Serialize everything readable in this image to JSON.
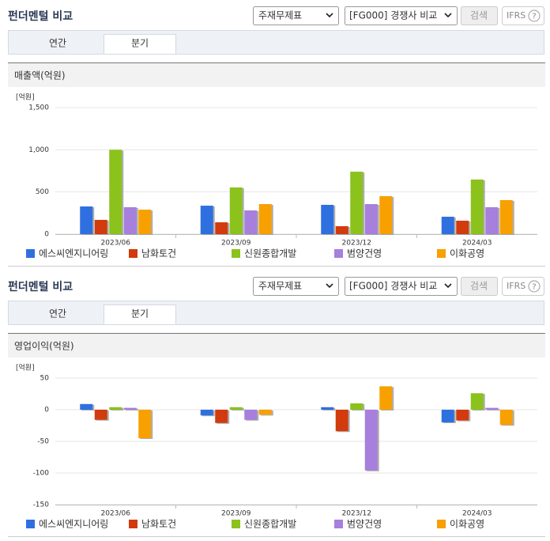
{
  "panels": [
    {
      "title": "펀더멘털 비교",
      "select1": "주재무제표",
      "select2": "[FG000] 경쟁사 비교",
      "button": "검색",
      "ifrs": "IFRS",
      "help": "?",
      "tabs": [
        "연간",
        "분기"
      ]
    },
    {
      "title": "펀더멘털 비교",
      "select1": "주재무제표",
      "select2": "[FG000] 경쟁사 비교",
      "button": "검색",
      "ifrs": "IFRS",
      "help": "?",
      "tabs": [
        "연간",
        "분기"
      ]
    }
  ],
  "chart_data": [
    {
      "type": "bar",
      "title": "매출액(억원)",
      "unit_label": "[억원]",
      "categories": [
        "2023/06",
        "2023/09",
        "2023/12",
        "2024/03"
      ],
      "series": [
        {
          "name": "에스씨엔지니어링",
          "color": "#2f6fe0",
          "values": [
            328,
            337,
            347,
            206
          ]
        },
        {
          "name": "남화토건",
          "color": "#d13a0c",
          "values": [
            169,
            140,
            94,
            159
          ]
        },
        {
          "name": "신원종합개발",
          "color": "#8cc21e",
          "values": [
            1000,
            553,
            740,
            647
          ]
        },
        {
          "name": "범양건영",
          "color": "#a77fdc",
          "values": [
            319,
            281,
            356,
            319
          ]
        },
        {
          "name": "이화공영",
          "color": "#f7a000",
          "values": [
            290,
            356,
            450,
            403
          ]
        }
      ],
      "ylim": [
        0,
        1500
      ],
      "yticks": [
        0,
        500,
        {
          "value": 1000,
          "label": "1,000"
        },
        {
          "value": 1500,
          "label": "1,500"
        }
      ],
      "grid": true
    },
    {
      "type": "bar",
      "title": "영업이익(억원)",
      "unit_label": "[억원]",
      "categories": [
        "2023/06",
        "2023/09",
        "2023/12",
        "2024/03"
      ],
      "series": [
        {
          "name": "에스씨엔지니어링",
          "color": "#2f6fe0",
          "values": [
            9,
            -9,
            4,
            -20
          ]
        },
        {
          "name": "남화토건",
          "color": "#d13a0c",
          "values": [
            -16,
            -21,
            -34,
            -17
          ]
        },
        {
          "name": "신원종합개발",
          "color": "#8cc21e",
          "values": [
            4,
            4,
            10,
            26
          ]
        },
        {
          "name": "범양건영",
          "color": "#a77fdc",
          "values": [
            3,
            -16,
            -96,
            3
          ]
        },
        {
          "name": "이화공영",
          "color": "#f7a000",
          "values": [
            -45,
            -8,
            37,
            -24
          ]
        }
      ],
      "ylim": [
        -150,
        50
      ],
      "yticks": [
        -150,
        -100,
        -50,
        0,
        50
      ],
      "grid": true
    }
  ]
}
